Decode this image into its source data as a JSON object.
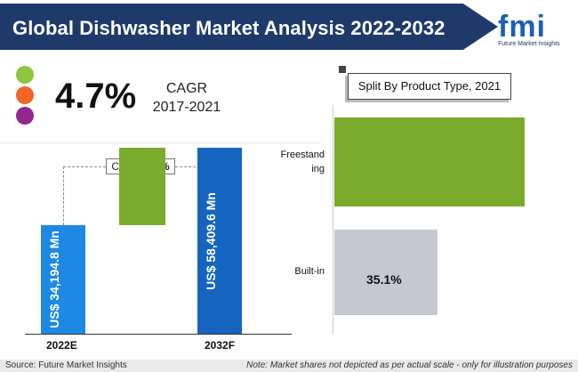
{
  "header": {
    "title": "Global Dishwasher Market Analysis 2022-2032",
    "logo_text": "fmi",
    "logo_subtitle": "Future Market Insights"
  },
  "kpi": {
    "cagr_value": "4.7%",
    "cagr_label": "CAGR",
    "cagr_period": "2017-2021",
    "dot_colors": [
      "#8dc63f",
      "#f26522",
      "#92278f"
    ]
  },
  "chart_data": [
    {
      "type": "bar",
      "categories": [
        "2022E",
        "2032F"
      ],
      "values": [
        34194.8,
        58409.6
      ],
      "data_labels": [
        "US$ 34,194.8 Mn",
        "US$ 58,409.6 Mn"
      ],
      "bar_colors": [
        "#1e88e5",
        "#1565c0"
      ],
      "growth_bar_color": "#7aab2c",
      "annotation": {
        "label": "CAGR",
        "value": "5.5%"
      },
      "ylim": [
        0,
        70000
      ]
    },
    {
      "type": "bar",
      "orientation": "horizontal",
      "title": "Split By Product  Type, 2021",
      "categories": [
        "Freestand ing",
        "Built-in"
      ],
      "values": [
        64.9,
        35.1
      ],
      "data_labels": [
        "",
        "35.1%"
      ],
      "bar_colors": [
        "#7aab2c",
        "#c5c8d2"
      ],
      "xlim": [
        0,
        100
      ]
    }
  ],
  "footer": {
    "source": "Source: Future Market Insights",
    "note": "Note: Market shares not depicted as per actual scale - only for illustration purposes"
  }
}
